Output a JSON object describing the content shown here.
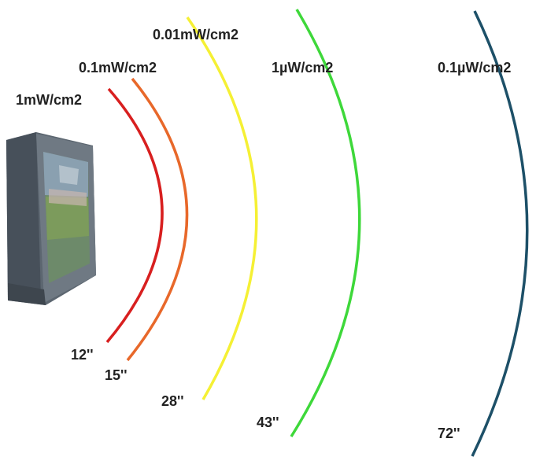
{
  "diagram": {
    "device": "tv-icon",
    "rings": [
      {
        "power_label": "1mW/cm2",
        "distance_label": "12''",
        "color": "#d81f1f"
      },
      {
        "power_label": "0.1mW/cm2",
        "distance_label": "15''",
        "color": "#e8682a"
      },
      {
        "power_label": "0.01mW/cm2",
        "distance_label": "28''",
        "color": "#f5f034"
      },
      {
        "power_label": "1µW/cm2",
        "distance_label": "43''",
        "color": "#3ed83a"
      },
      {
        "power_label": "0.1µW/cm2",
        "distance_label": "72''",
        "color": "#1d5068"
      }
    ]
  }
}
